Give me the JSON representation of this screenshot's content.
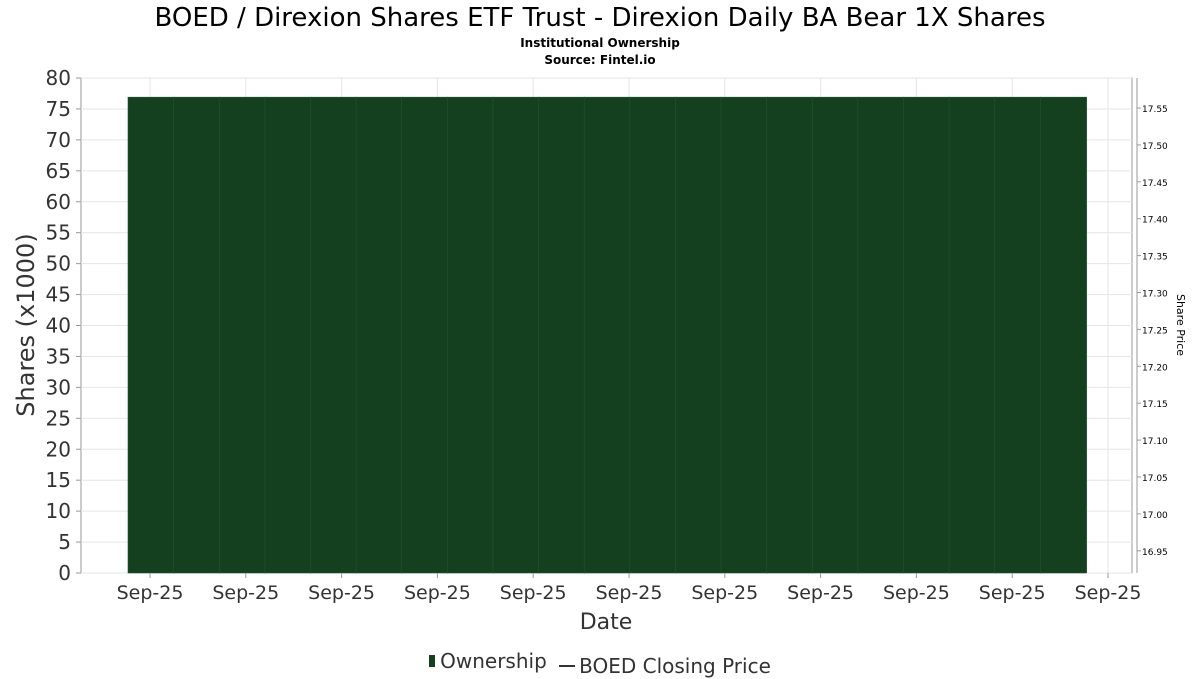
{
  "title": "BOED / Direxion Shares ETF Trust - Direxion Daily BA Bear 1X Shares",
  "subtitle": "Institutional Ownership",
  "source": "Source: Fintel.io",
  "colors": {
    "ownership": "#15401f",
    "ownership_edge": "#6b6b6b",
    "price_line": "#333333",
    "grid": "#e6e6e6",
    "axis_text": "#333333"
  },
  "legend": {
    "ownership": "Ownership",
    "price": "BOED Closing Price"
  },
  "chart_data": {
    "type": "area",
    "x_ticks": [
      "Sep-25",
      "Sep-25",
      "Sep-25",
      "Sep-25",
      "Sep-25",
      "Sep-25",
      "Sep-25",
      "Sep-25",
      "Sep-25",
      "Sep-25",
      "Sep-25"
    ],
    "xlabel": "Date",
    "ylabel": "Shares (x1000)",
    "ylim": [
      0,
      80
    ],
    "y_ticks": [
      0,
      5,
      10,
      15,
      20,
      25,
      30,
      35,
      40,
      45,
      50,
      55,
      60,
      65,
      70,
      75,
      80
    ],
    "y2label": "Share Price",
    "y2_ticks": [
      "16.95",
      "17.00",
      "17.05",
      "17.10",
      "17.15",
      "17.20",
      "17.25",
      "17.30",
      "17.35",
      "17.40",
      "17.45",
      "17.50",
      "17.55"
    ],
    "grid": true,
    "legend_position": "bottom",
    "series": [
      {
        "name": "Ownership",
        "values": [
          76.9,
          76.9,
          76.9,
          76.9,
          76.9,
          76.9,
          76.9,
          76.9,
          76.9,
          76.9,
          76.9,
          76.9,
          76.9,
          76.9,
          76.9,
          76.9,
          76.9,
          76.9,
          76.9,
          76.9,
          76.9
        ]
      },
      {
        "name": "BOED Closing Price",
        "values": []
      }
    ]
  }
}
